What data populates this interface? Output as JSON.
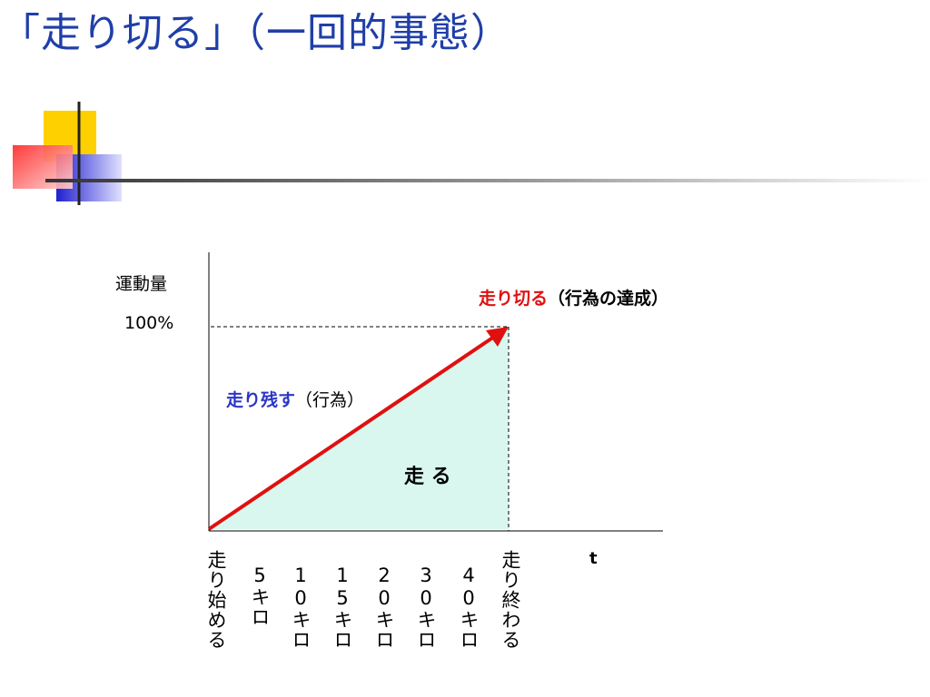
{
  "slide": {
    "title": "「走り切る」（一回的事態）"
  },
  "diagram": {
    "y_axis_label": "運動量",
    "y_max_label": "100%",
    "x_axis_label": "t",
    "completion_label_emph": "走り切る",
    "completion_label_rest": "（行為の達成）",
    "remain_label_emph": "走り残す",
    "remain_label_rest": "（行為）",
    "area_label": "走 る",
    "x_ticks": [
      {
        "label": "走り始める"
      },
      {
        "label": "5キロ"
      },
      {
        "label": "10キロ"
      },
      {
        "label": "15キロ"
      },
      {
        "label": "20キロ"
      },
      {
        "label": "30キロ"
      },
      {
        "label": "40キロ"
      },
      {
        "label": "走り終わる"
      }
    ],
    "colors": {
      "title": "#1f3fa8",
      "arrow": "#e01010",
      "area_fill": "#d9f7ef",
      "completion_emph": "#e01010",
      "remain_emph": "#2b35c8"
    }
  }
}
